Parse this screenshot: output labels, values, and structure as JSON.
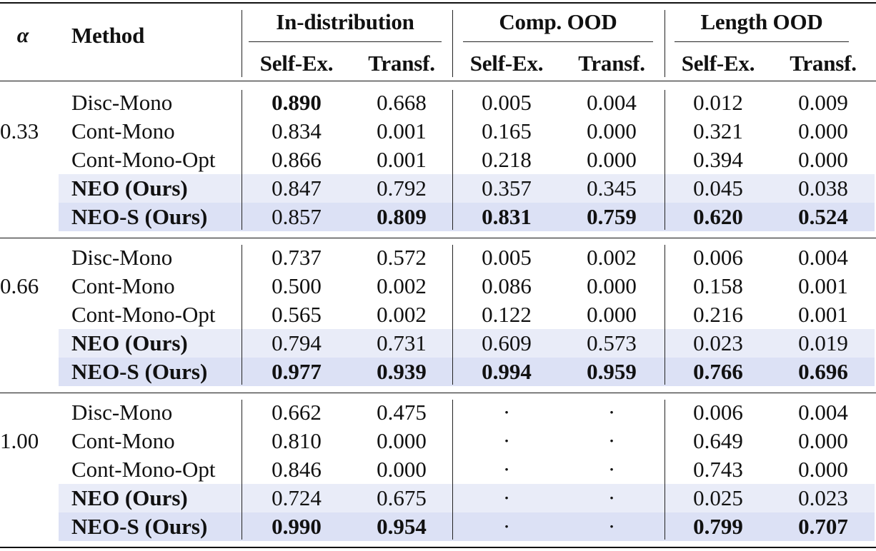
{
  "header": {
    "alpha": "α",
    "method": "Method",
    "groups": [
      "In-distribution",
      "Comp. OOD",
      "Length OOD"
    ],
    "subcols": [
      "Self-Ex.",
      "Transf.",
      "Self-Ex.",
      "Transf.",
      "Self-Ex.",
      "Transf."
    ]
  },
  "colors": {
    "ours_band": "#e9ecf8",
    "ours_s_band": "#dce1f5",
    "rule": "#111111"
  },
  "blocks": [
    {
      "alpha": "0.33",
      "rows": [
        {
          "method": "Disc-Mono",
          "ours": "",
          "values": [
            "0.890",
            "0.668",
            "0.005",
            "0.004",
            "0.012",
            "0.009"
          ],
          "bold": [
            true,
            false,
            false,
            false,
            false,
            false
          ]
        },
        {
          "method": "Cont-Mono",
          "ours": "",
          "values": [
            "0.834",
            "0.001",
            "0.165",
            "0.000",
            "0.321",
            "0.000"
          ],
          "bold": [
            false,
            false,
            false,
            false,
            false,
            false
          ]
        },
        {
          "method": "Cont-Mono-Opt",
          "ours": "",
          "values": [
            "0.866",
            "0.001",
            "0.218",
            "0.000",
            "0.394",
            "0.000"
          ],
          "bold": [
            false,
            false,
            false,
            false,
            false,
            false
          ]
        },
        {
          "method": "NEO (Ours)",
          "ours": "neo",
          "values": [
            "0.847",
            "0.792",
            "0.357",
            "0.345",
            "0.045",
            "0.038"
          ],
          "bold": [
            false,
            false,
            false,
            false,
            false,
            false
          ]
        },
        {
          "method": "NEO-S (Ours)",
          "ours": "neo-s",
          "values": [
            "0.857",
            "0.809",
            "0.831",
            "0.759",
            "0.620",
            "0.524"
          ],
          "bold": [
            false,
            true,
            true,
            true,
            true,
            true
          ]
        }
      ]
    },
    {
      "alpha": "0.66",
      "rows": [
        {
          "method": "Disc-Mono",
          "ours": "",
          "values": [
            "0.737",
            "0.572",
            "0.005",
            "0.002",
            "0.006",
            "0.004"
          ],
          "bold": [
            false,
            false,
            false,
            false,
            false,
            false
          ]
        },
        {
          "method": "Cont-Mono",
          "ours": "",
          "values": [
            "0.500",
            "0.002",
            "0.086",
            "0.000",
            "0.158",
            "0.001"
          ],
          "bold": [
            false,
            false,
            false,
            false,
            false,
            false
          ]
        },
        {
          "method": "Cont-Mono-Opt",
          "ours": "",
          "values": [
            "0.565",
            "0.002",
            "0.122",
            "0.000",
            "0.216",
            "0.001"
          ],
          "bold": [
            false,
            false,
            false,
            false,
            false,
            false
          ]
        },
        {
          "method": "NEO (Ours)",
          "ours": "neo",
          "values": [
            "0.794",
            "0.731",
            "0.609",
            "0.573",
            "0.023",
            "0.019"
          ],
          "bold": [
            false,
            false,
            false,
            false,
            false,
            false
          ]
        },
        {
          "method": "NEO-S (Ours)",
          "ours": "neo-s",
          "values": [
            "0.977",
            "0.939",
            "0.994",
            "0.959",
            "0.766",
            "0.696"
          ],
          "bold": [
            true,
            true,
            true,
            true,
            true,
            true
          ]
        }
      ]
    },
    {
      "alpha": "1.00",
      "rows": [
        {
          "method": "Disc-Mono",
          "ours": "",
          "values": [
            "0.662",
            "0.475",
            "·",
            "·",
            "0.006",
            "0.004"
          ],
          "bold": [
            false,
            false,
            false,
            false,
            false,
            false
          ]
        },
        {
          "method": "Cont-Mono",
          "ours": "",
          "values": [
            "0.810",
            "0.000",
            "·",
            "·",
            "0.649",
            "0.000"
          ],
          "bold": [
            false,
            false,
            false,
            false,
            false,
            false
          ]
        },
        {
          "method": "Cont-Mono-Opt",
          "ours": "",
          "values": [
            "0.846",
            "0.000",
            "·",
            "·",
            "0.743",
            "0.000"
          ],
          "bold": [
            false,
            false,
            false,
            false,
            false,
            false
          ]
        },
        {
          "method": "NEO (Ours)",
          "ours": "neo",
          "values": [
            "0.724",
            "0.675",
            "·",
            "·",
            "0.025",
            "0.023"
          ],
          "bold": [
            false,
            false,
            false,
            false,
            false,
            false
          ]
        },
        {
          "method": "NEO-S (Ours)",
          "ours": "neo-s",
          "values": [
            "0.990",
            "0.954",
            "·",
            "·",
            "0.799",
            "0.707"
          ],
          "bold": [
            true,
            true,
            false,
            false,
            true,
            true
          ]
        }
      ]
    }
  ]
}
